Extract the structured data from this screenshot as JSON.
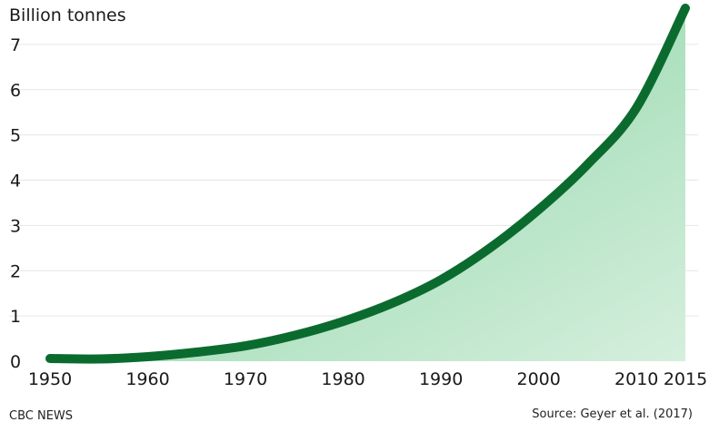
{
  "chart_data": {
    "type": "area",
    "ylabel": "Billion tonnes",
    "xlabel": "",
    "x_ticks": [
      1950,
      1960,
      1970,
      1980,
      1990,
      2000,
      2010,
      2015
    ],
    "y_ticks": [
      0,
      1,
      2,
      3,
      4,
      5,
      6,
      7
    ],
    "xlim": [
      1950,
      2015
    ],
    "ylim": [
      0,
      7.8
    ],
    "grid": "horizontal",
    "series": [
      {
        "x": [
          1950,
          1955,
          1960,
          1965,
          1970,
          1975,
          1980,
          1985,
          1990,
          1995,
          2000,
          2005,
          2010,
          2015
        ],
        "values": [
          0.06,
          0.05,
          0.1,
          0.2,
          0.34,
          0.57,
          0.88,
          1.28,
          1.8,
          2.5,
          3.35,
          4.35,
          5.6,
          7.8
        ],
        "color": "#0b6b2e"
      }
    ],
    "fill_colors": {
      "dark": "#7dcf9a",
      "light": "#d5efdd"
    },
    "grid_color": "#e6e6e6"
  },
  "footer": {
    "brand": "CBC NEWS",
    "source": "Source: Geyer et al. (2017)"
  }
}
